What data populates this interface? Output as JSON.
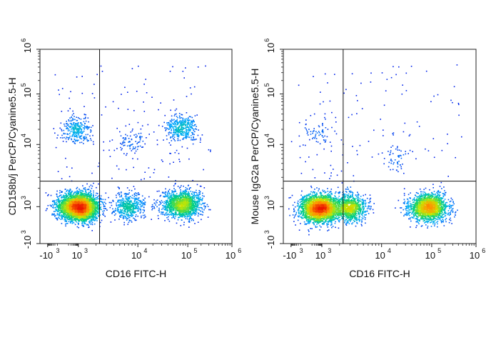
{
  "chart_data": [
    {
      "type": "scatter",
      "subtype": "flow-cytometry-density-plot",
      "xlabel": "CD16 FITC-H",
      "ylabel": "CD158b/j PerCP/Cyanine5.5-H",
      "x_scale": "biexponential",
      "y_scale": "biexponential",
      "xlim": [
        -1200,
        1000000
      ],
      "ylim": [
        -1000,
        1000000
      ],
      "x_ticks": [
        {
          "value": -1000,
          "base": "-10",
          "exp": "3"
        },
        {
          "value": 1000,
          "base": "10",
          "exp": "3"
        },
        {
          "value": 10000,
          "base": "10",
          "exp": "4"
        },
        {
          "value": 100000,
          "base": "10",
          "exp": "5"
        },
        {
          "value": 1000000,
          "base": "10",
          "exp": "6"
        }
      ],
      "y_ticks": [
        {
          "value": -1000,
          "base": "-10",
          "exp": "3"
        },
        {
          "value": 1000,
          "base": "10",
          "exp": "3"
        },
        {
          "value": 10000,
          "base": "10",
          "exp": "4"
        },
        {
          "value": 100000,
          "base": "10",
          "exp": "5"
        },
        {
          "value": 1000000,
          "base": "10",
          "exp": "6"
        }
      ],
      "gates": {
        "x": 2300,
        "y": 2600
      },
      "populations": [
        {
          "x": 600,
          "y": 1000,
          "count": 2600
        },
        {
          "x": 1300,
          "y": 1000,
          "count": 900
        },
        {
          "x": 7000,
          "y": 1050,
          "count": 500
        },
        {
          "x": 75000,
          "y": 1100,
          "count": 1500
        },
        {
          "x": 600,
          "y": 20000,
          "count": 280
        },
        {
          "x": 75000,
          "y": 22000,
          "count": 380
        },
        {
          "x": 8000,
          "y": 12000,
          "count": 90
        }
      ],
      "grid": false
    },
    {
      "type": "scatter",
      "subtype": "flow-cytometry-density-plot",
      "xlabel": "CD16 FITC-H",
      "ylabel": "Mouse IgG2a PerCP/Cyanine5.5-H",
      "x_scale": "biexponential",
      "y_scale": "biexponential",
      "xlim": [
        -1200,
        1000000
      ],
      "ylim": [
        -1000,
        1000000
      ],
      "x_ticks": [
        {
          "value": -1000,
          "base": "-10",
          "exp": "3"
        },
        {
          "value": 1000,
          "base": "10",
          "exp": "3"
        },
        {
          "value": 10000,
          "base": "10",
          "exp": "4"
        },
        {
          "value": 100000,
          "base": "10",
          "exp": "5"
        },
        {
          "value": 1000000,
          "base": "10",
          "exp": "6"
        }
      ],
      "y_ticks": [
        {
          "value": -1000,
          "base": "-10",
          "exp": "3"
        },
        {
          "value": 1000,
          "base": "10",
          "exp": "3"
        },
        {
          "value": 10000,
          "base": "10",
          "exp": "4"
        },
        {
          "value": 100000,
          "base": "10",
          "exp": "5"
        },
        {
          "value": 1000000,
          "base": "10",
          "exp": "6"
        }
      ],
      "gates": {
        "x": 2300,
        "y": 2600
      },
      "populations": [
        {
          "x": 600,
          "y": 800,
          "count": 2600
        },
        {
          "x": 3000,
          "y": 850,
          "count": 1000
        },
        {
          "x": 85000,
          "y": 950,
          "count": 1800
        },
        {
          "x": 600,
          "y": 18000,
          "count": 60
        },
        {
          "x": 20000,
          "y": 6000,
          "count": 50
        }
      ],
      "grid": false
    }
  ]
}
